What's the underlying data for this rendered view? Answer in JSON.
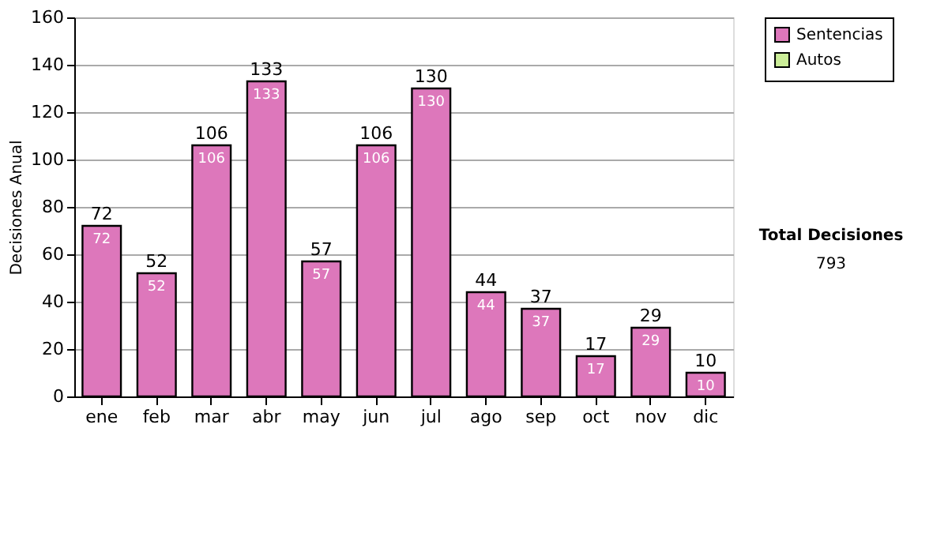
{
  "chart_data": {
    "type": "bar",
    "stacked": true,
    "ylabel": "Decisiones Anual",
    "categories": [
      "ene",
      "feb",
      "mar",
      "abr",
      "may",
      "jun",
      "jul",
      "ago",
      "sep",
      "oct",
      "nov",
      "dic"
    ],
    "series": [
      {
        "name": "Sentencias",
        "color": "#dd77bb",
        "values": [
          72,
          52,
          106,
          133,
          57,
          106,
          130,
          44,
          37,
          17,
          29,
          10
        ]
      },
      {
        "name": "Autos",
        "color": "#ccee99",
        "values": [
          null,
          null,
          null,
          null,
          null,
          null,
          null,
          null,
          null,
          null,
          null,
          null
        ]
      }
    ],
    "data_labels": true,
    "totals": [
      "72",
      "52",
      "106",
      "133",
      "57",
      "106",
      "130",
      "44",
      "37",
      "17",
      "29",
      "10"
    ],
    "ylim": [
      0,
      160
    ],
    "yticks": [
      0,
      20,
      40,
      60,
      80,
      100,
      120,
      140,
      160
    ],
    "grid": "y",
    "legend": "right",
    "annotations": [
      "Total Decisiones",
      "793"
    ]
  }
}
